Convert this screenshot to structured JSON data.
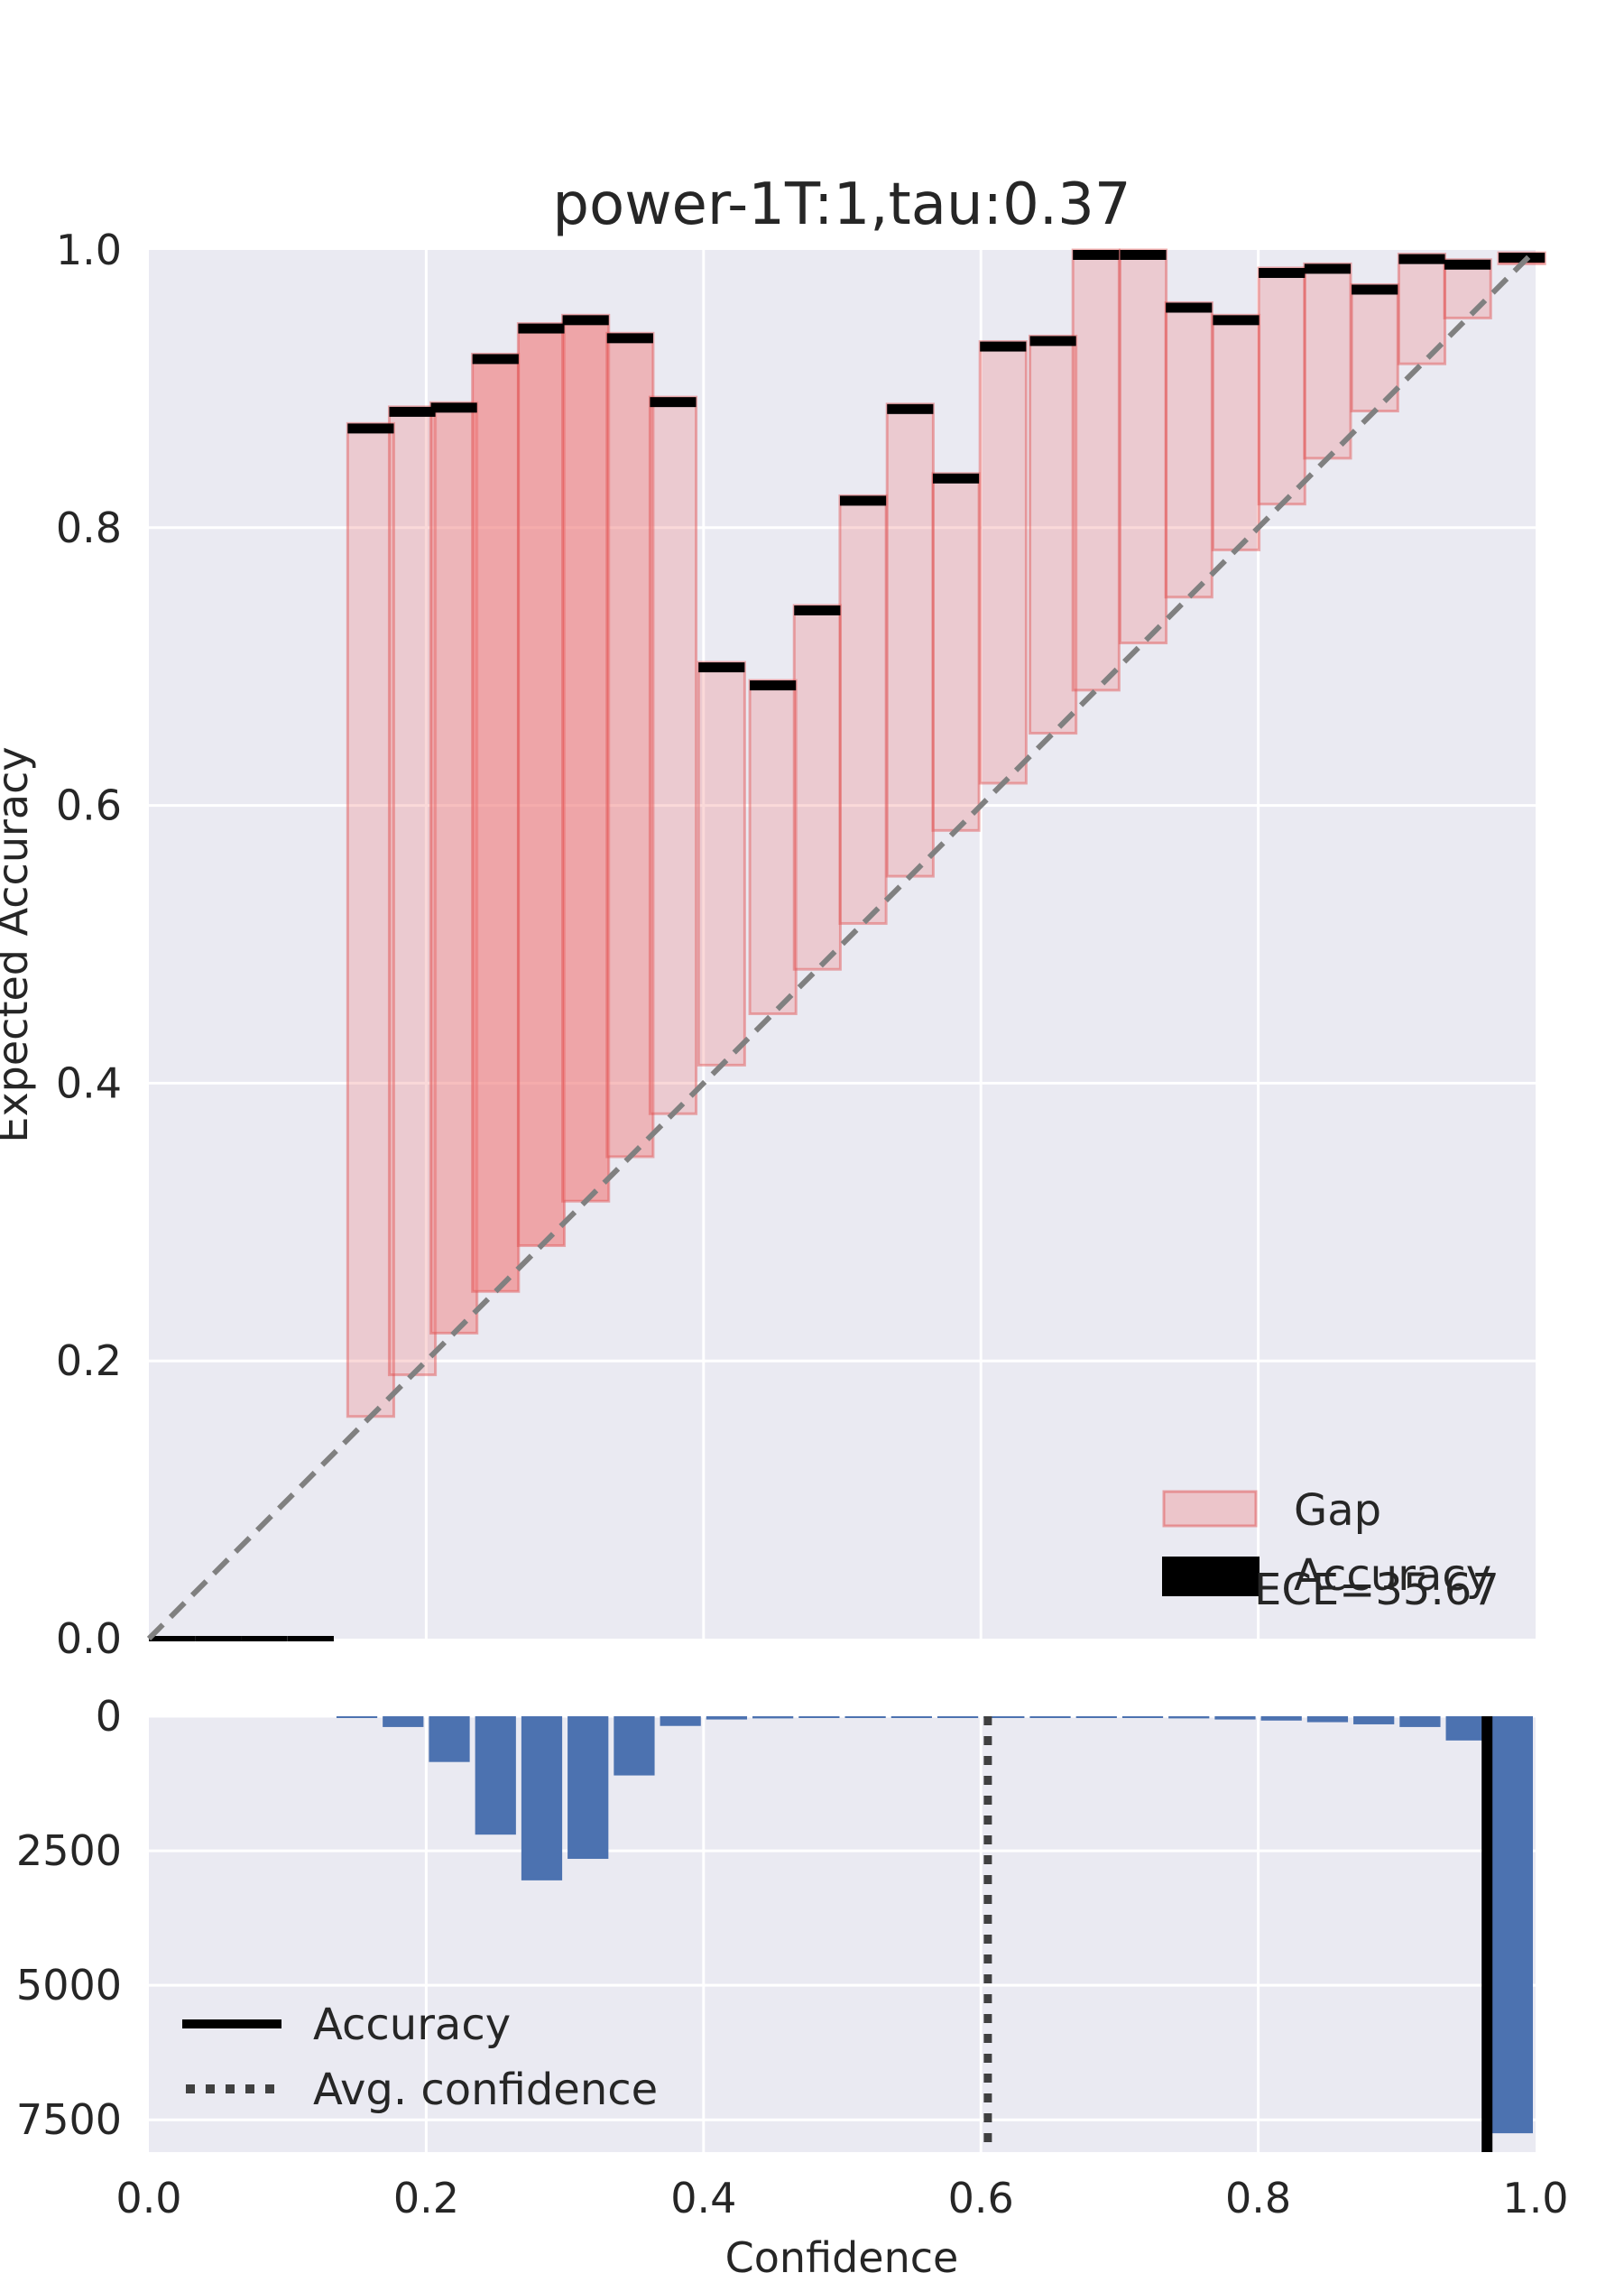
{
  "chart_data": [
    {
      "type": "bar",
      "title": "power-1T:1,tau:0.37",
      "xlabel": "",
      "ylabel": "Expected Accuracy",
      "xlim": [
        0.0,
        1.0
      ],
      "ylim": [
        0.0,
        1.0
      ],
      "xticks": [
        "0.2",
        "0.4",
        "0.6",
        "0.8"
      ],
      "yticks": [
        "0.0",
        "0.2",
        "0.4",
        "0.6",
        "0.8",
        "1.0"
      ],
      "grid": true,
      "legend_position": "bottom-right",
      "legend": [
        "Gap",
        "Accuracy"
      ],
      "annotation": "ECE=35.67",
      "bin_width": 0.0333,
      "bins": [
        {
          "conf": 0.0167,
          "acc": 0.0
        },
        {
          "conf": 0.05,
          "acc": 0.0
        },
        {
          "conf": 0.0833,
          "acc": 0.0
        },
        {
          "conf": 0.1167,
          "acc": 0.0
        },
        {
          "conf": 0.16,
          "acc": 0.875
        },
        {
          "conf": 0.19,
          "acc": 0.887
        },
        {
          "conf": 0.22,
          "acc": 0.89
        },
        {
          "conf": 0.25,
          "acc": 0.925
        },
        {
          "conf": 0.283,
          "acc": 0.947
        },
        {
          "conf": 0.315,
          "acc": 0.953
        },
        {
          "conf": 0.347,
          "acc": 0.94
        },
        {
          "conf": 0.378,
          "acc": 0.894
        },
        {
          "conf": 0.413,
          "acc": 0.703
        },
        {
          "conf": 0.45,
          "acc": 0.69
        },
        {
          "conf": 0.482,
          "acc": 0.744
        },
        {
          "conf": 0.515,
          "acc": 0.823
        },
        {
          "conf": 0.549,
          "acc": 0.889
        },
        {
          "conf": 0.582,
          "acc": 0.839
        },
        {
          "conf": 0.616,
          "acc": 0.934
        },
        {
          "conf": 0.652,
          "acc": 0.938
        },
        {
          "conf": 0.683,
          "acc": 1.0
        },
        {
          "conf": 0.717,
          "acc": 1.0
        },
        {
          "conf": 0.75,
          "acc": 0.962
        },
        {
          "conf": 0.784,
          "acc": 0.953
        },
        {
          "conf": 0.817,
          "acc": 0.987
        },
        {
          "conf": 0.85,
          "acc": 0.99
        },
        {
          "conf": 0.884,
          "acc": 0.975
        },
        {
          "conf": 0.918,
          "acc": 0.997
        },
        {
          "conf": 0.951,
          "acc": 0.993
        },
        {
          "conf": 0.99,
          "acc": 0.998
        }
      ],
      "bin_counts": [
        0,
        0,
        0,
        0,
        25,
        200,
        850,
        2200,
        3050,
        2650,
        1100,
        180,
        60,
        40,
        30,
        20,
        20,
        20,
        20,
        20,
        20,
        30,
        40,
        60,
        80,
        110,
        150,
        200,
        450,
        7750
      ]
    },
    {
      "type": "bar",
      "title": "",
      "xlabel": "Confidence",
      "ylabel": "",
      "xlim": [
        0.0,
        1.0
      ],
      "ylim": [
        0,
        8100
      ],
      "inverted_y": true,
      "xticks": [
        "0.0",
        "0.2",
        "0.4",
        "0.6",
        "0.8",
        "1.0"
      ],
      "yticks": [
        "0",
        "2500",
        "5000",
        "7500"
      ],
      "grid": true,
      "legend_position": "bottom-left",
      "legend": [
        "Accuracy",
        "Avg. confidence"
      ],
      "accuracy_line": 0.965,
      "avg_confidence_line": 0.605,
      "bar_color": "#4c72b0"
    }
  ],
  "colors": {
    "axes_bg": "#eaeaf2",
    "grid": "#ffffff",
    "gap_fill": "#f08080",
    "gap_edge": "#e05050",
    "accuracy_mark": "#000000",
    "diagonal": "#808080",
    "hist_bar": "#4c72b0",
    "avg_line": "#404040"
  }
}
